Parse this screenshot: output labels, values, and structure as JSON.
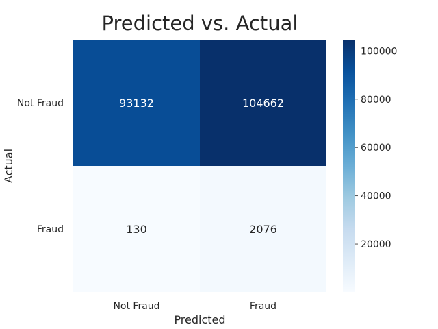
{
  "chart_data": {
    "type": "heatmap",
    "title": "Predicted vs. Actual",
    "xlabel": "Predicted",
    "ylabel": "Actual",
    "x_categories": [
      "Not Fraud",
      "Fraud"
    ],
    "y_categories": [
      "Not Fraud",
      "Fraud"
    ],
    "values": [
      [
        93132,
        104662
      ],
      [
        130,
        2076
      ]
    ],
    "colormap": "Blues",
    "colorbar": {
      "min": 130,
      "max": 104662,
      "ticks": [
        20000,
        40000,
        60000,
        80000,
        100000
      ],
      "tick_labels": [
        "20000",
        "40000",
        "60000",
        "80000",
        "100000"
      ]
    },
    "legend": "none",
    "grid": false
  }
}
